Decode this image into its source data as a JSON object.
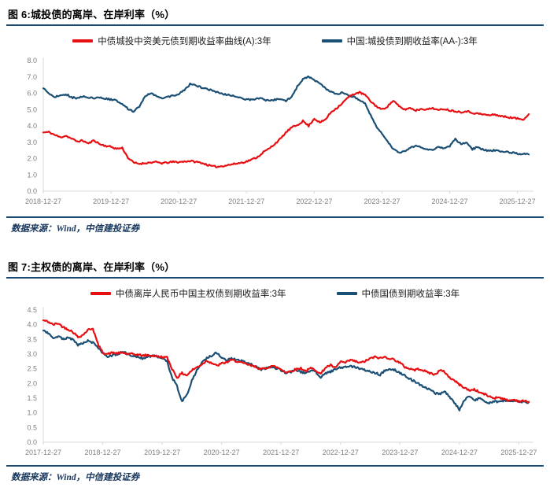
{
  "style": {
    "rule_color": "#1a4971",
    "axis_text_color": "#7f7f7f",
    "axis_line_color": "#d9d9d9",
    "source_text_color": "#17365d",
    "red_series_color": "#e60f12",
    "blue_series_color": "#1b4f74"
  },
  "figures": [
    {
      "title": "图 6:城投债的离岸、在岸利率（%）",
      "source_note": "数据来源：Wind，中信建投证券",
      "chart_data": {
        "type": "line",
        "title": "城投债的离岸、在岸利率（%）",
        "xlabel": "",
        "ylabel": "",
        "ylim": [
          0,
          8
        ],
        "ytick_step": 1,
        "grid": false,
        "legend_position": "top-center",
        "x_unit": "months since 2018-12-27",
        "x_tick_labels": [
          "2018-12-27",
          "2019-12-27",
          "2020-12-27",
          "2021-12-27",
          "2022-12-27",
          "2023-12-27",
          "2024-12-27",
          "2025-12-27"
        ],
        "series": [
          {
            "name": "中债城投中资美元债到期收益率曲线(A):3年",
            "color": "#e60f12",
            "values": [
              3.6,
              3.62,
              3.45,
              3.3,
              3.4,
              3.22,
              3.05,
              3.1,
              2.92,
              3.12,
              2.88,
              2.78,
              2.72,
              2.6,
              2.65,
              2.05,
              1.75,
              1.68,
              1.72,
              1.76,
              1.78,
              1.72,
              1.75,
              1.8,
              1.78,
              1.82,
              1.85,
              1.8,
              1.74,
              1.62,
              1.52,
              1.5,
              1.56,
              1.62,
              1.68,
              1.74,
              1.82,
              1.95,
              2.1,
              2.4,
              2.6,
              2.9,
              3.2,
              3.6,
              3.9,
              4.05,
              4.3,
              4.0,
              4.45,
              4.2,
              4.4,
              4.85,
              5.1,
              5.4,
              5.75,
              5.95,
              6.05,
              5.9,
              5.5,
              5.2,
              5.0,
              5.2,
              5.55,
              5.2,
              5.0,
              5.1,
              4.95,
              5.05,
              5.0,
              5.1,
              4.95,
              5.05,
              4.95,
              4.9,
              4.85,
              4.9,
              4.8,
              4.75,
              4.7,
              4.65,
              4.7,
              4.6,
              4.55,
              4.5,
              4.45,
              4.4,
              4.72
            ]
          },
          {
            "name": "中国:城投债到期收益率(AA-):3年",
            "color": "#1b4f74",
            "values": [
              6.3,
              6.0,
              5.78,
              5.85,
              5.95,
              5.75,
              5.68,
              5.8,
              5.74,
              5.7,
              5.72,
              5.66,
              5.62,
              5.55,
              5.35,
              5.05,
              4.88,
              5.2,
              5.75,
              6.02,
              5.85,
              5.7,
              5.76,
              5.85,
              5.95,
              6.2,
              6.55,
              6.48,
              6.35,
              6.25,
              6.18,
              6.02,
              5.95,
              5.88,
              5.82,
              5.72,
              5.62,
              5.58,
              5.7,
              5.63,
              5.52,
              5.6,
              5.68,
              5.52,
              5.8,
              6.4,
              6.88,
              7.0,
              6.8,
              6.62,
              6.3,
              6.08,
              5.95,
              6.05,
              5.85,
              5.8,
              5.6,
              5.35,
              4.65,
              4.0,
              3.5,
              3.05,
              2.6,
              2.35,
              2.42,
              2.65,
              2.8,
              2.68,
              2.58,
              2.55,
              2.7,
              2.62,
              2.78,
              3.2,
              2.88,
              3.02,
              2.58,
              2.7,
              2.52,
              2.46,
              2.5,
              2.42,
              2.4,
              2.36,
              2.3,
              2.28,
              2.25
            ]
          }
        ]
      }
    },
    {
      "title": "图 7:主权债的离岸、在岸利率（%）",
      "source_note": "数据来源：Wind，中信建投证券",
      "chart_data": {
        "type": "line",
        "title": "主权债的离岸、在岸利率（%）",
        "xlabel": "",
        "ylabel": "",
        "ylim": [
          0,
          4.5
        ],
        "ytick_step": 0.5,
        "grid": false,
        "legend_position": "top-center",
        "x_unit": "months since 2017-12-27",
        "x_tick_labels": [
          "2017-12-27",
          "2018-12-27",
          "2019-12-27",
          "2020-12-27",
          "2021-12-27",
          "2022-12-27",
          "2023-12-27",
          "2024-12-27",
          "2025-12-27"
        ],
        "series": [
          {
            "name": "中债离岸人民币中国主权债到期收益率:3年",
            "color": "#e60f12",
            "values": [
              4.15,
              4.1,
              4.0,
              4.05,
              3.92,
              3.85,
              3.75,
              3.58,
              3.65,
              3.82,
              3.88,
              3.35,
              3.05,
              3.0,
              3.05,
              3.02,
              3.05,
              3.0,
              3.0,
              2.98,
              2.95,
              2.96,
              2.95,
              2.92,
              2.9,
              2.88,
              2.5,
              2.2,
              2.35,
              2.28,
              2.45,
              2.55,
              2.65,
              2.78,
              2.7,
              2.6,
              2.68,
              2.72,
              2.8,
              2.76,
              2.7,
              2.66,
              2.6,
              2.56,
              2.48,
              2.52,
              2.6,
              2.56,
              2.48,
              2.38,
              2.42,
              2.48,
              2.52,
              2.42,
              2.52,
              2.46,
              2.32,
              2.55,
              2.62,
              2.52,
              2.75,
              2.7,
              2.8,
              2.75,
              2.7,
              2.76,
              2.85,
              2.9,
              2.86,
              2.9,
              2.85,
              2.8,
              2.7,
              2.56,
              2.5,
              2.46,
              2.5,
              2.42,
              2.36,
              2.3,
              2.44,
              2.4,
              2.2,
              2.1,
              1.96,
              1.86,
              1.76,
              1.8,
              1.7,
              1.64,
              1.56,
              1.5,
              1.54,
              1.46,
              1.42,
              1.45,
              1.4,
              1.4,
              1.38
            ]
          },
          {
            "name": "中债国债到期收益率:3年",
            "color": "#1b4f74",
            "values": [
              3.8,
              3.7,
              3.55,
              3.6,
              3.52,
              3.56,
              3.5,
              3.3,
              3.36,
              3.45,
              3.4,
              3.2,
              3.05,
              2.92,
              2.96,
              3.0,
              3.1,
              3.0,
              2.95,
              2.9,
              2.86,
              2.9,
              2.95,
              2.9,
              2.86,
              2.76,
              2.2,
              1.9,
              1.4,
              1.62,
              2.1,
              2.45,
              2.7,
              2.85,
              2.95,
              3.05,
              2.9,
              2.78,
              2.86,
              2.8,
              2.76,
              2.7,
              2.66,
              2.56,
              2.46,
              2.52,
              2.56,
              2.52,
              2.46,
              2.36,
              2.4,
              2.46,
              2.4,
              2.36,
              2.46,
              2.4,
              2.2,
              2.36,
              2.4,
              2.5,
              2.55,
              2.55,
              2.6,
              2.55,
              2.5,
              2.46,
              2.4,
              2.36,
              2.3,
              2.45,
              2.5,
              2.45,
              2.36,
              2.26,
              2.16,
              2.06,
              1.96,
              1.88,
              1.78,
              1.68,
              1.64,
              1.74,
              1.55,
              1.35,
              1.1,
              1.45,
              1.58,
              1.42,
              1.5,
              1.38,
              1.34,
              1.4,
              1.36,
              1.4,
              1.42,
              1.4,
              1.38,
              1.38,
              1.36
            ]
          }
        ]
      }
    }
  ]
}
